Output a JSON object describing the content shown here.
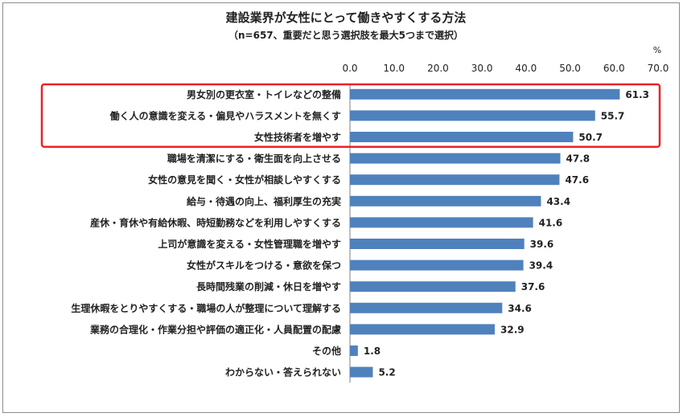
{
  "chart_data": {
    "type": "bar",
    "orientation": "horizontal",
    "title": "建設業界が女性にとって働きやすくする方法",
    "subtitle": "（n=657、重要だと思う選択肢を最大5つまで選択）",
    "unit": "%",
    "xlim": [
      0,
      70
    ],
    "ticks": [
      "0.0",
      "10.0",
      "20.0",
      "30.0",
      "40.0",
      "50.0",
      "60.0",
      "70.0"
    ],
    "tick_values": [
      0,
      10,
      20,
      30,
      40,
      50,
      60,
      70
    ],
    "bar_color": "#4f81bd",
    "highlight_color": "#e8232a",
    "highlight_count": 3,
    "grid": false,
    "categories": [
      "男女別の更衣室・トイレなどの整備",
      "働く人の意識を変える・偏見やハラスメントを無くす",
      "女性技術者を増やす",
      "職場を清潔にする・衛生面を向上させる",
      "女性の意見を聞く・女性が相談しやすくする",
      "給与・待遇の向上、福利厚生の充実",
      "産休・育休や有給休暇、時短勤務などを利用しやすくする",
      "上司が意識を変える・女性管理職を増やす",
      "女性がスキルをつける・意欲を保つ",
      "長時間残業の削減・休日を増やす",
      "生理休暇をとりやすくする・職場の人が整理について理解する",
      "業務の合理化・作業分担や評価の適正化・人員配置の配慮",
      "その他",
      "わからない・答えられない"
    ],
    "values": [
      61.3,
      55.7,
      50.7,
      47.8,
      47.6,
      43.4,
      41.6,
      39.6,
      39.4,
      37.6,
      34.6,
      32.9,
      1.8,
      5.2
    ],
    "value_labels": [
      "61.3",
      "55.7",
      "50.7",
      "47.8",
      "47.6",
      "43.4",
      "41.6",
      "39.6",
      "39.4",
      "37.6",
      "34.6",
      "32.9",
      "1.8",
      "5.2"
    ]
  }
}
